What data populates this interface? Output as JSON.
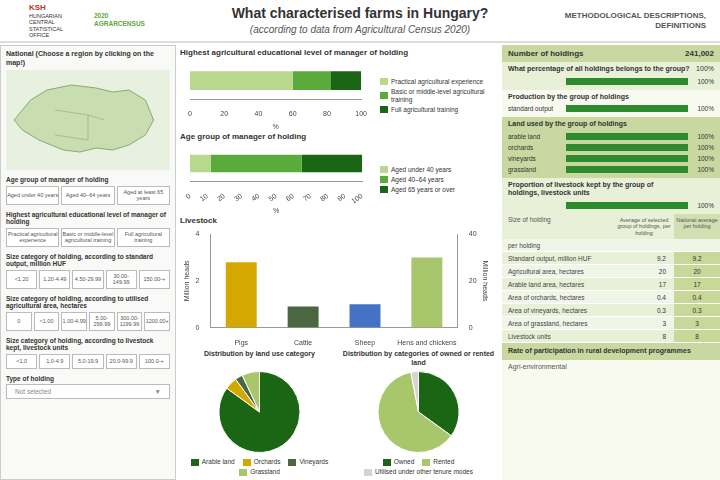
{
  "title": "What characterised farms in Hungary?",
  "subtitle": "(according to data from Agricultural Census 2020)",
  "header": {
    "logo": "KSH",
    "logo_text": "HUNGARIAN\nCENTRAL\nSTATISTICAL\nOFFICE",
    "census": "2020\nAGRARCENSUS",
    "top_right": "METHODOLOGICAL DESCRIPTIONS,\nDEFINITIONS"
  },
  "left_panel": {
    "title": "National (Choose a region by clicking on the map!)",
    "sections": [
      {
        "title": "Age group of manager of holding",
        "labels": [
          "Aged under 40 years",
          "Aged 40–64 years",
          "Aged at least 65 years"
        ]
      },
      {
        "title": "Highest agricultural educational level of manager of holding",
        "labels": [
          "Practical agricultural\nexperience",
          "Basic or middle-level\nagricultural training",
          "Full agricultural training"
        ]
      },
      {
        "title": "Size category of holding, according to standard output, million HUF",
        "labels": [
          "<1.20",
          "1.20-4.49",
          "4.50-29.99",
          "30.00-\n149.99",
          "150.00-+"
        ]
      },
      {
        "title": "Size category of holding, according to utilised agricultural area, hectares",
        "labels": [
          "0",
          "<1.00",
          "1.00-4.99",
          "5.00-\n299.99",
          "300.00-\n1199.99",
          "1200.00+"
        ]
      },
      {
        "title": "Size category of holding, according to livestock kept, livestock units",
        "labels": [
          "<1.0",
          "1.0-4.9",
          "5.0-19.9",
          "20.0-99.9",
          "100.0-+"
        ]
      }
    ],
    "type_title": "Type of holding",
    "type_placeholder": "Not selected",
    "type_arrow": "▼"
  },
  "chart_data": [
    {
      "type": "bar",
      "orientation": "horizontal",
      "stacked": true,
      "title": "Highest agricultural educational level of manager of holding",
      "categories": [
        null
      ],
      "series": [
        {
          "name": "Practical agricultural experience",
          "color": "#b8d98d",
          "values": [
            60
          ]
        },
        {
          "name": "Basic or middle-level agricultural training",
          "color": "#5aaa3c",
          "values": [
            22
          ]
        },
        {
          "name": "Full agricultural training",
          "color": "#1a6614",
          "values": [
            18
          ]
        }
      ],
      "xlim": [
        0,
        100
      ],
      "xticks": [
        0,
        20,
        40,
        60,
        80,
        100
      ],
      "xlabel": "%",
      "tick_labels": "x",
      "legend": "right",
      "grid": false
    },
    {
      "type": "bar",
      "orientation": "horizontal",
      "stacked": true,
      "title": "Age group of manager of holding",
      "categories": [
        null
      ],
      "series": [
        {
          "name": "Aged under 40 years",
          "color": "#b8d98d",
          "values": [
            12
          ]
        },
        {
          "name": "Aged 40–64 years",
          "color": "#5aaa3c",
          "values": [
            53
          ]
        },
        {
          "name": "Aged 65 years or over",
          "color": "#1a6614",
          "values": [
            35
          ]
        }
      ],
      "xlim": [
        0,
        100
      ],
      "xticks": [
        0,
        10,
        20,
        30,
        40,
        50,
        60,
        70,
        80,
        90,
        100
      ],
      "xlabel": "%",
      "tick_labels": "x",
      "legend": "right",
      "grid": false
    },
    {
      "type": "bar",
      "title": "Livestock",
      "categories": [
        "Pigs",
        "Cattle",
        "Sheep",
        "Hens and chickens"
      ],
      "colors": [
        "#d4a800",
        "#4a6741",
        "#4472c4",
        "#a8c66c"
      ],
      "series": [
        {
          "values": [
            2.8,
            0.9,
            1.0,
            null
          ]
        },
        {
          "values": [
            null,
            null,
            null,
            30.0
          ],
          "axis": "y2"
        }
      ],
      "ylim": [
        0,
        4
      ],
      "yticks": [
        0,
        2,
        4
      ],
      "ylabel": "Million heads",
      "y2lim": [
        0,
        40
      ],
      "y2ticks": [
        0,
        20,
        40
      ],
      "y2label": "Million heads",
      "grid": false
    },
    {
      "type": "pie",
      "title": "Distribution by land use category",
      "categories": [
        "Arable land",
        "Orchards",
        "Vineyards",
        "Grassland"
      ],
      "values": [
        85,
        5,
        3,
        7
      ],
      "colors": [
        "#1a6614",
        "#d4a800",
        "#4a6741",
        "#a8c66c"
      ],
      "legend": "bottom"
    },
    {
      "type": "pie",
      "title": "Distribution by categories of owned or rented land",
      "categories": [
        "Owned",
        "Rented",
        "Utilised under other tenure modes"
      ],
      "values": [
        35,
        62,
        3
      ],
      "colors": [
        "#1a6614",
        "#a8c66c",
        "#d4d4d4"
      ],
      "legend": "bottom"
    }
  ],
  "right_panel": {
    "holdings_label": "Number of holdings",
    "holdings_value": "241,002",
    "xlim": [
      0,
      100
    ],
    "color": "#2d8a2d",
    "groups": [
      {
        "title": "What percentage of all holdings belongs to the group?",
        "title_value_label": "100%",
        "bars": [
          {
            "value": 100,
            "value_label": "100%"
          }
        ]
      },
      {
        "title": "Production by the group of holdings",
        "bars": [
          {
            "label": "standard output",
            "value": 100,
            "value_label": "100%"
          }
        ]
      },
      {
        "title": "Land used by the group of holdings",
        "bars": [
          {
            "label": "arable land",
            "value": 100,
            "value_label": "100%"
          },
          {
            "label": "orchards",
            "value": 100,
            "value_label": "100%"
          },
          {
            "label": "vineyards",
            "value": 100,
            "value_label": "100%"
          },
          {
            "label": "grassland",
            "value": 100,
            "value_label": "100%"
          }
        ]
      },
      {
        "title": "Proportion of livestock kept by the group of\nholdings, livestock units",
        "bars": [
          {
            "value": 100,
            "value_label": "100%"
          }
        ]
      }
    ],
    "table": {
      "header": "Size of holding",
      "columns": [
        "Average of selected group of holdings, per holding",
        "National average per holding"
      ],
      "rows": [
        {
          "label": "per holding"
        },
        {
          "label": "Standard output, million HUF",
          "values": [
            9.2,
            9.2
          ]
        },
        {
          "label": "Agricultural area, hectares",
          "values": [
            20,
            20
          ]
        },
        {
          "label": "Arable land area, hectares",
          "values": [
            17,
            17
          ]
        },
        {
          "label": "Area of orchards, hectares",
          "values": [
            0.4,
            0.4
          ]
        },
        {
          "label": "Area of vineyards, hectares",
          "values": [
            0.3,
            0.3
          ]
        },
        {
          "label": "Area of grassland, hectares",
          "values": [
            3,
            3
          ]
        },
        {
          "label": "Livestock units",
          "values": [
            8,
            8
          ]
        }
      ]
    },
    "rural_label": "Rate of participation in rural development programmes",
    "agri_label": "Agri-environmental"
  }
}
